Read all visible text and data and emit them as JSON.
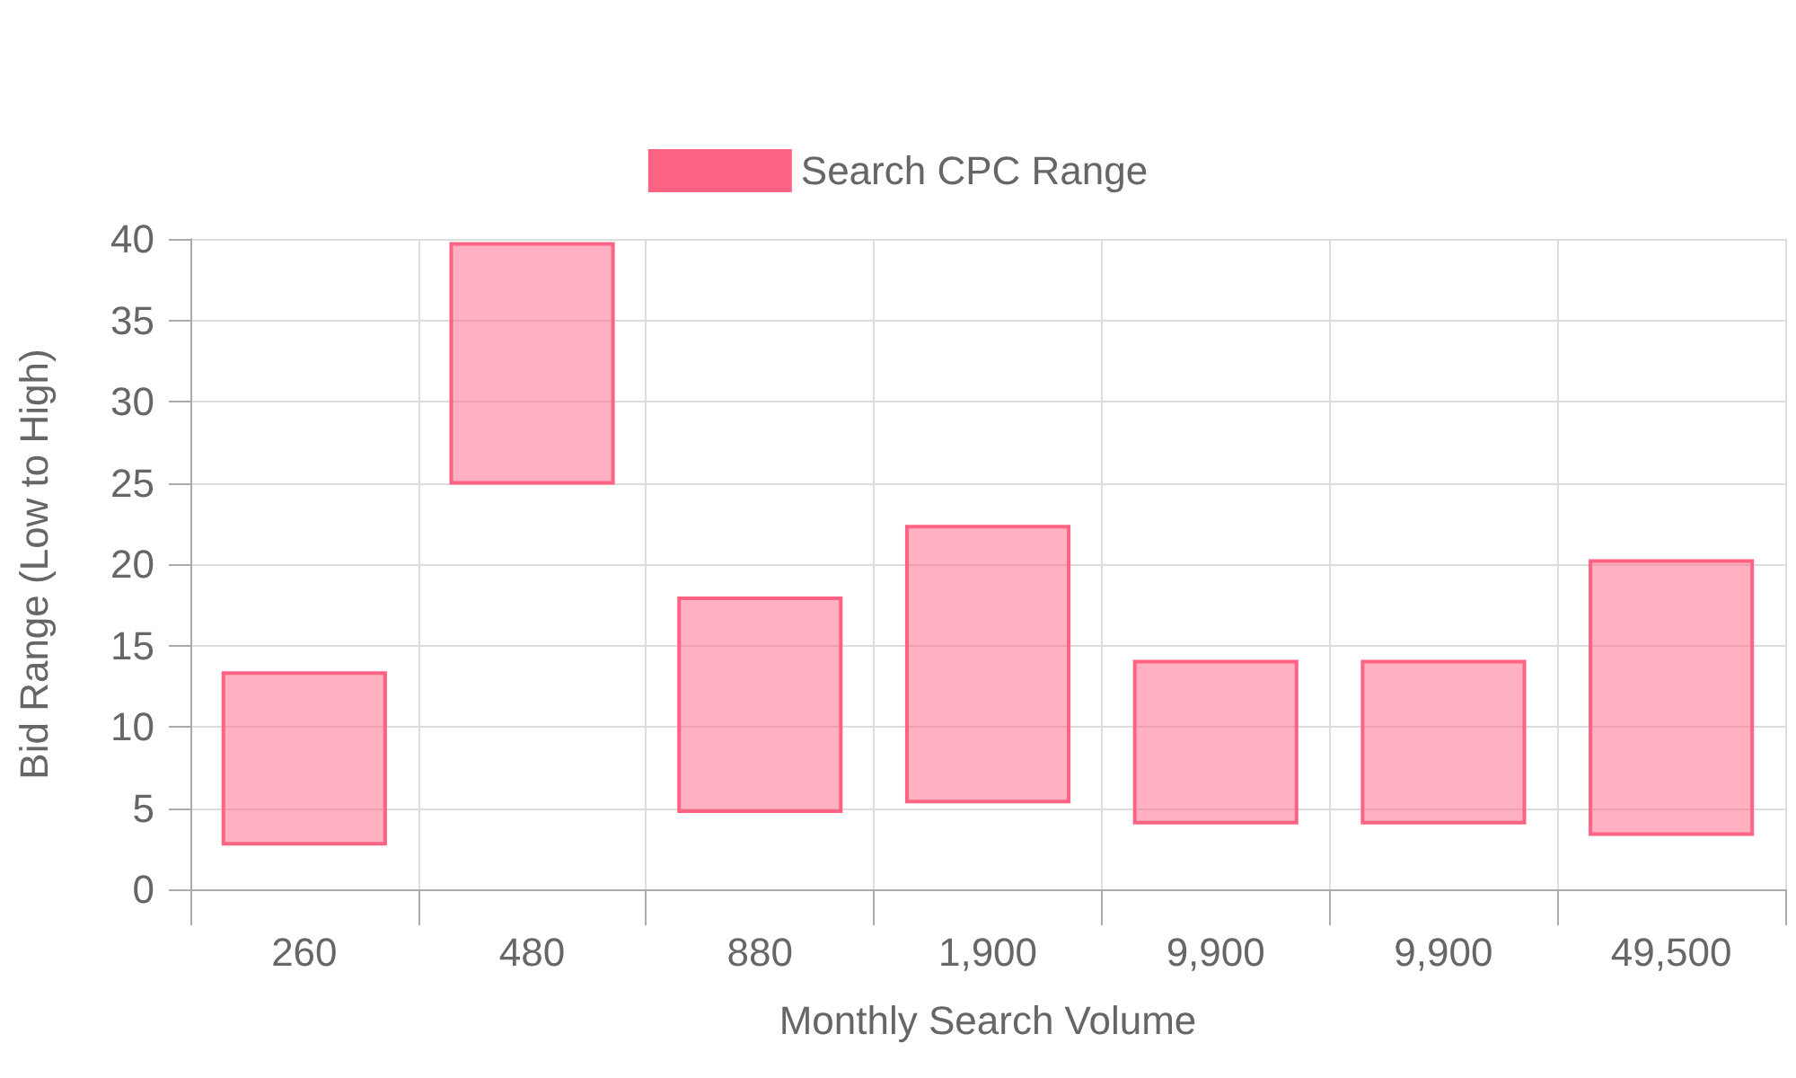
{
  "chart_data": {
    "type": "bar",
    "xlabel": "Monthly Search Volume",
    "ylabel": "Bid Range (Low to High)",
    "categories": [
      "260",
      "480",
      "880",
      "1,900",
      "9,900",
      "9,900",
      "49,500"
    ],
    "series": [
      {
        "name": "Search CPC Range",
        "color": "#ff6384",
        "base": [
          2.8,
          25.0,
          4.8,
          5.4,
          4.1,
          4.1,
          3.4
        ],
        "values": [
          10.5,
          14.7,
          13.1,
          16.9,
          9.9,
          9.9,
          16.8
        ]
      }
    ],
    "ylim": [
      0,
      40
    ],
    "yticks": [
      0,
      5,
      10,
      15,
      20,
      25,
      30,
      35,
      40
    ],
    "grid": true,
    "legend": "top"
  }
}
